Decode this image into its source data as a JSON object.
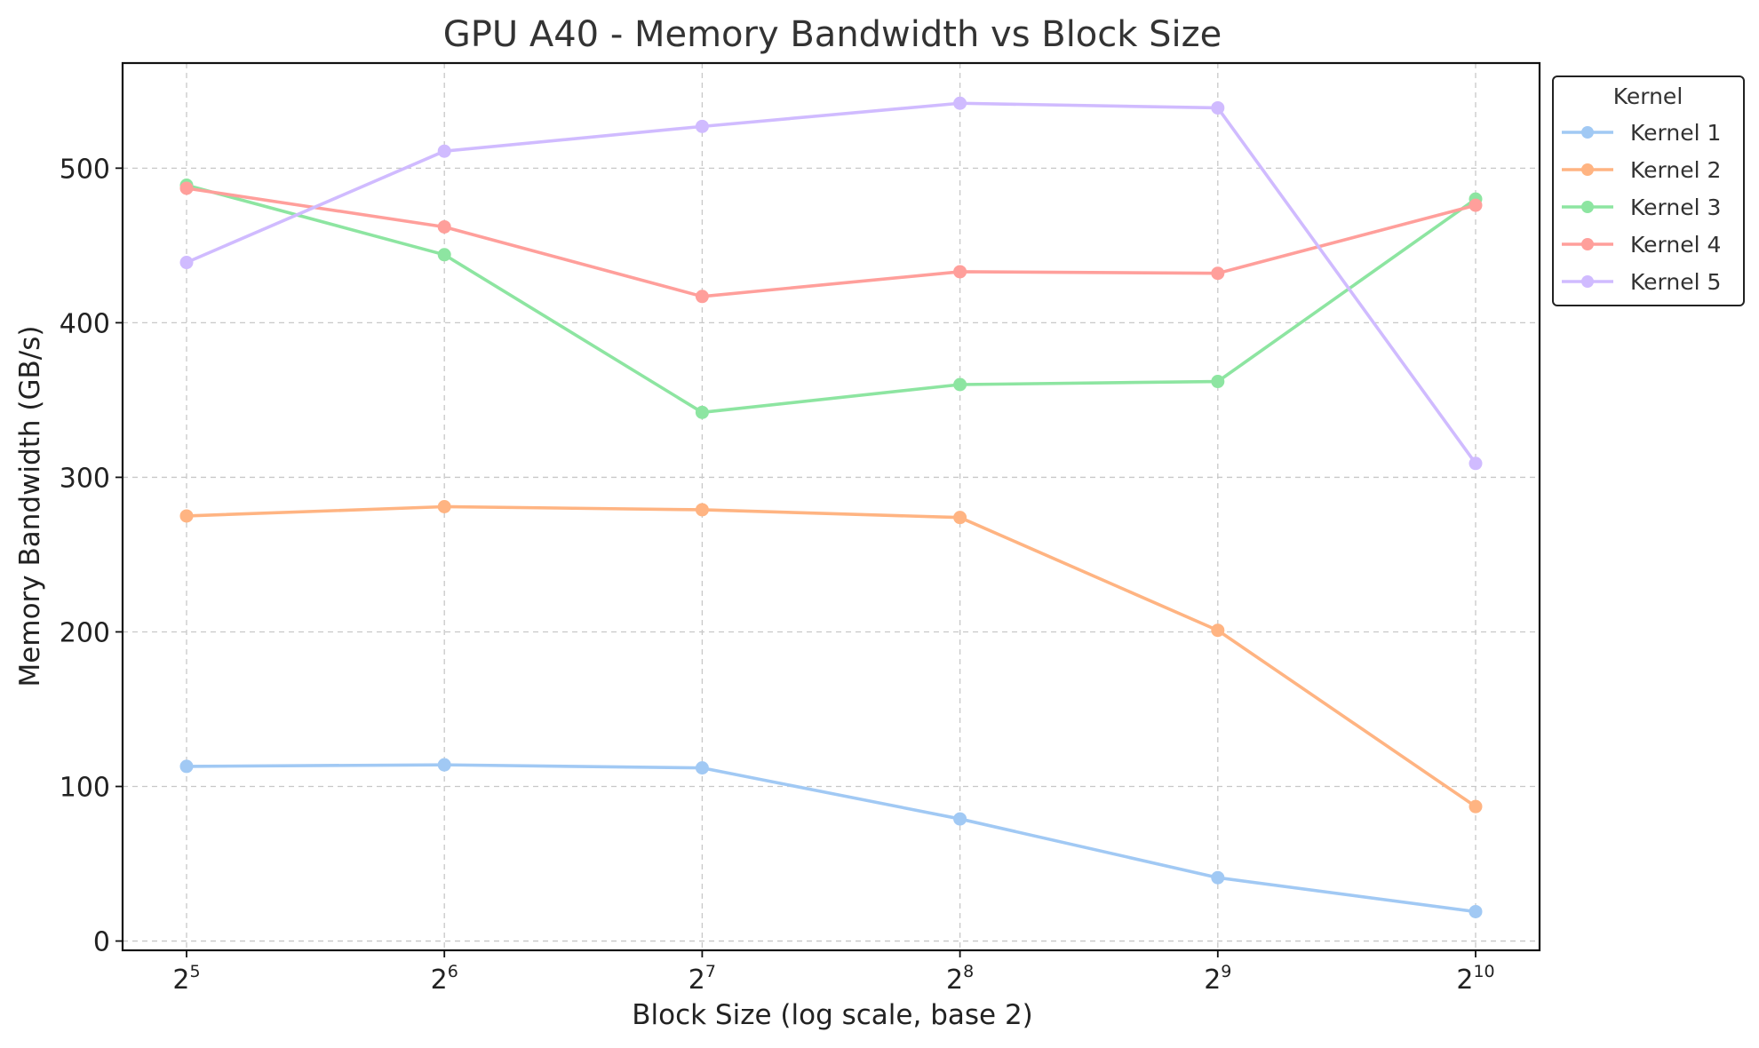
{
  "chart_data": {
    "type": "line",
    "title": "GPU A40 - Memory Bandwidth vs Block Size",
    "xlabel": "Block Size (log scale, base 2)",
    "ylabel": "Memory Bandwidth (GB/s)",
    "x_scale": "log2",
    "x": [
      32,
      64,
      128,
      256,
      512,
      1024
    ],
    "x_tick_labels": [
      {
        "base": "2",
        "exp": "5"
      },
      {
        "base": "2",
        "exp": "6"
      },
      {
        "base": "2",
        "exp": "7"
      },
      {
        "base": "2",
        "exp": "8"
      },
      {
        "base": "2",
        "exp": "9"
      },
      {
        "base": "2",
        "exp": "10"
      }
    ],
    "y_ticks": [
      0,
      100,
      200,
      300,
      400,
      500
    ],
    "ylim": [
      -6,
      568
    ],
    "grid": true,
    "legend": {
      "title": "Kernel",
      "placement": "outside top-right"
    },
    "series": [
      {
        "name": "Kernel 1",
        "color": "#a1c9f4",
        "values": [
          113,
          114,
          112,
          79,
          41,
          19
        ]
      },
      {
        "name": "Kernel 2",
        "color": "#ffb482",
        "values": [
          275,
          281,
          279,
          274,
          201,
          87
        ]
      },
      {
        "name": "Kernel 3",
        "color": "#8de5a1",
        "values": [
          489,
          444,
          342,
          360,
          362,
          480
        ]
      },
      {
        "name": "Kernel 4",
        "color": "#ff9f9b",
        "values": [
          487,
          462,
          417,
          433,
          432,
          476
        ]
      },
      {
        "name": "Kernel 5",
        "color": "#d0bbff",
        "values": [
          439,
          511,
          527,
          542,
          539,
          309
        ]
      }
    ]
  }
}
